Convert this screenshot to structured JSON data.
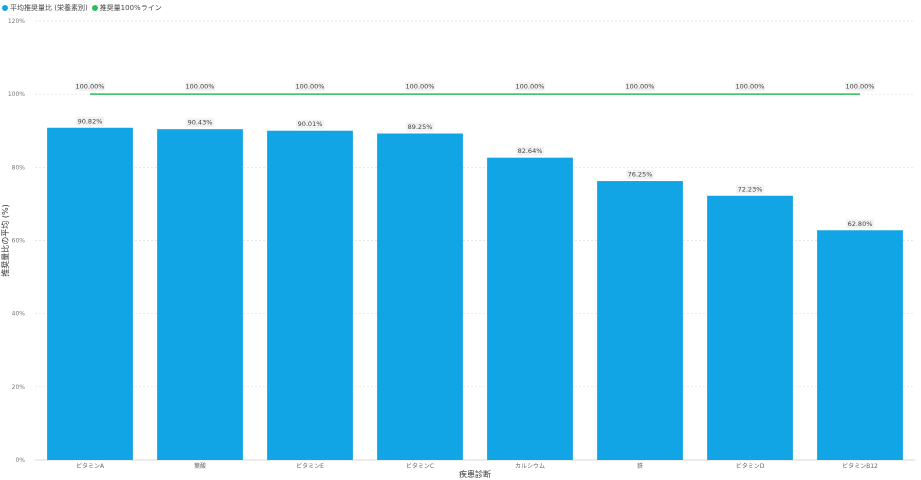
{
  "chart_data": {
    "type": "bar",
    "xlabel": "疾患診断",
    "ylabel": "推奨量比の平均 (%)",
    "ylim": [
      0,
      120
    ],
    "y_ticks": [
      "0%",
      "20%",
      "40%",
      "60%",
      "80%",
      "100%",
      "120%"
    ],
    "grid": true,
    "legend_position": "top-left",
    "categories": [
      "ビタミンA",
      "葉酸",
      "ビタミンE",
      "ビタミンC",
      "カルシウム",
      "鉄",
      "ビタミンD",
      "ビタミンB12"
    ],
    "series": [
      {
        "name": "平均推奨量比 (栄養素別)",
        "type": "bar",
        "color": "#12a5e6",
        "values": [
          90.82,
          90.43,
          90.01,
          89.25,
          82.64,
          76.25,
          72.23,
          62.8
        ],
        "labels": [
          "90.82%",
          "90.43%",
          "90.01%",
          "89.25%",
          "82.64%",
          "76.25%",
          "72.23%",
          "62.80%"
        ]
      },
      {
        "name": "推奨量100%ライン",
        "type": "line",
        "color": "#2dbc5a",
        "values": [
          100,
          100,
          100,
          100,
          100,
          100,
          100,
          100
        ],
        "labels": [
          "100.00%",
          "100.00%",
          "100.00%",
          "100.00%",
          "100.00%",
          "100.00%",
          "100.00%",
          "100.00%"
        ]
      }
    ]
  }
}
